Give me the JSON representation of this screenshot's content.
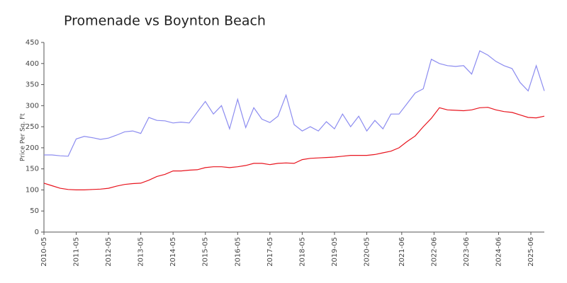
{
  "chart_data": {
    "type": "line",
    "title": "Promenade vs Boynton Beach",
    "y_label": "Price Per Sq. Ft",
    "x": [
      "2010-05",
      "2010-08",
      "2010-11",
      "2011-02",
      "2011-05",
      "2011-08",
      "2011-11",
      "2012-02",
      "2012-05",
      "2012-08",
      "2012-11",
      "2013-02",
      "2013-05",
      "2013-08",
      "2013-11",
      "2014-02",
      "2014-05",
      "2014-08",
      "2014-11",
      "2015-02",
      "2015-05",
      "2015-08",
      "2015-11",
      "2016-02",
      "2016-05",
      "2016-08",
      "2016-11",
      "2017-02",
      "2017-05",
      "2017-08",
      "2017-11",
      "2018-02",
      "2018-05",
      "2018-08",
      "2018-11",
      "2019-02",
      "2019-05",
      "2019-08",
      "2019-11",
      "2020-02",
      "2020-05",
      "2020-08",
      "2020-11",
      "2021-02",
      "2021-05",
      "2021-08",
      "2021-11",
      "2022-02",
      "2022-05",
      "2022-08",
      "2022-11",
      "2023-02",
      "2023-05",
      "2023-08",
      "2023-11",
      "2024-02",
      "2024-05",
      "2024-08",
      "2024-11",
      "2025-02",
      "2025-05",
      "2025-08",
      "2025-11"
    ],
    "series": [
      {
        "color": "#8c8cf0",
        "values": [
          183,
          183,
          181,
          180,
          221,
          227,
          224,
          220,
          223,
          230,
          238,
          240,
          234,
          272,
          265,
          264,
          259,
          261,
          259,
          285,
          310,
          280,
          300,
          245,
          315,
          248,
          295,
          268,
          260,
          275,
          325,
          255,
          240,
          250,
          240,
          262,
          245,
          280,
          250,
          275,
          240,
          265,
          245,
          280,
          280,
          305,
          330,
          340,
          410,
          400,
          395,
          393,
          395,
          375,
          430,
          420,
          405,
          395,
          388,
          355,
          335,
          395,
          335
        ]
      },
      {
        "color": "#e8141e",
        "values": [
          116,
          110,
          104,
          101,
          100,
          100,
          101,
          102,
          104,
          109,
          113,
          115,
          116,
          123,
          132,
          137,
          145,
          145,
          147,
          148,
          153,
          155,
          155,
          153,
          155,
          158,
          163,
          163,
          160,
          163,
          164,
          163,
          172,
          175,
          176,
          177,
          178,
          180,
          182,
          182,
          182,
          184,
          188,
          192,
          200,
          215,
          228,
          250,
          270,
          295,
          290,
          289,
          288,
          290,
          295,
          296,
          290,
          286,
          284,
          278,
          272,
          271,
          275
        ]
      }
    ],
    "xlim": [
      "2010-05",
      "2025-11"
    ],
    "xticks": [
      "2010-05",
      "2011-05",
      "2012-05",
      "2013-05",
      "2014-05",
      "2015-05",
      "2016-05",
      "2017-05",
      "2018-05",
      "2019-05",
      "2020-05",
      "2021-06",
      "2022-06",
      "2023-06",
      "2024-06",
      "2025-06"
    ],
    "ylim": [
      0,
      450
    ],
    "yticks": [
      0,
      50,
      100,
      150,
      200,
      250,
      300,
      350,
      400,
      450
    ]
  }
}
